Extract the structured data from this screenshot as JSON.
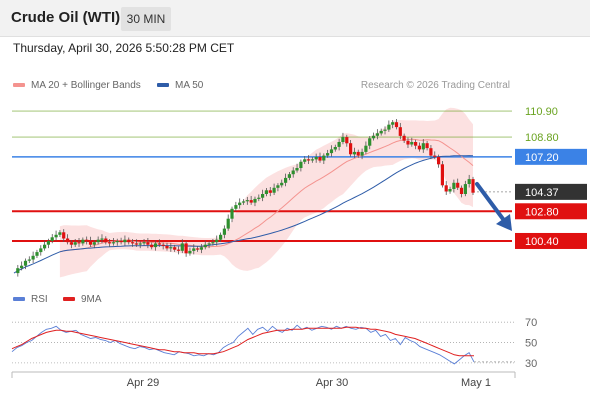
{
  "header": {
    "title": "Crude Oil (WTI)",
    "timeframe_label": "30 MIN"
  },
  "timestamp": "Thursday, April 30, 2026 5:50:28 PM CET",
  "legend": {
    "ma_bb": {
      "label": "MA 20 + Bollinger Bands",
      "color": "#f4938f"
    },
    "ma50": {
      "label": "MA 50",
      "color": "#2e5ca8"
    },
    "credit": "Research © 2026 Trading Central"
  },
  "rsi_legend": {
    "rsi": {
      "label": "RSI",
      "color": "#5a7fd6"
    },
    "ma9": {
      "label": "9MA",
      "color": "#e02020"
    }
  },
  "price_levels": [
    {
      "label": "110.90",
      "value": 110.9,
      "kind": "resistance",
      "color": "#6aa321"
    },
    {
      "label": "108.80",
      "value": 108.8,
      "kind": "resistance",
      "color": "#6aa321"
    },
    {
      "label": "107.20",
      "value": 107.2,
      "kind": "pivot",
      "color": "#3b82e6"
    },
    {
      "label": "104.37",
      "value": 104.37,
      "kind": "last-price",
      "color": "#333333"
    },
    {
      "label": "102.80",
      "value": 102.8,
      "kind": "support",
      "color": "#e01010"
    },
    {
      "label": "100.40",
      "value": 100.4,
      "kind": "support",
      "color": "#e01010"
    }
  ],
  "rsi_levels": [
    "70",
    "50",
    "30"
  ],
  "x_labels": [
    "Apr 29",
    "Apr 30",
    "May 1"
  ],
  "chart_data": {
    "type": "line",
    "price_range": [
      98.7,
      112.2
    ],
    "rsi_range": [
      25,
      80
    ],
    "close": [
      97.8,
      98.2,
      98.4,
      98.8,
      98.9,
      99.2,
      99.5,
      99.8,
      100.1,
      100.4,
      100.7,
      100.9,
      101.1,
      100.6,
      100.3,
      100.1,
      100.3,
      100.2,
      100.5,
      100.4,
      100.1,
      100.3,
      100.5,
      100.6,
      100.3,
      100.2,
      100.3,
      100.4,
      100.3,
      100.5,
      100.3,
      100.2,
      100.1,
      100.2,
      100.3,
      100.1,
      99.9,
      100.2,
      100.1,
      100.0,
      99.8,
      99.9,
      99.7,
      99.6,
      100.2,
      99.4,
      99.6,
      99.8,
      99.7,
      99.9,
      100.1,
      100.2,
      100.3,
      100.5,
      100.9,
      101.4,
      102.2,
      103.0,
      103.3,
      103.5,
      103.6,
      103.7,
      103.5,
      103.8,
      103.9,
      104.2,
      104.5,
      104.3,
      104.7,
      104.9,
      105.1,
      105.5,
      105.8,
      106.1,
      106.3,
      106.8,
      107.0,
      106.9,
      107.0,
      107.2,
      106.9,
      107.3,
      107.5,
      107.8,
      108.0,
      108.4,
      108.8,
      108.3,
      107.4,
      107.6,
      107.3,
      107.6,
      108.1,
      108.7,
      108.9,
      109.1,
      109.3,
      109.4,
      109.8,
      110.0,
      109.6,
      108.9,
      108.5,
      108.2,
      108.4,
      108.1,
      107.8,
      108.3,
      107.9,
      107.3,
      107.2,
      106.6,
      104.9,
      104.4,
      104.6,
      105.1,
      104.7,
      104.2,
      105.0,
      105.4,
      104.3
    ],
    "rsi": [
      41,
      45,
      47,
      50,
      52,
      56,
      60,
      63,
      64,
      66,
      62,
      60,
      61,
      62,
      58,
      56,
      54,
      55,
      53,
      52,
      50,
      52,
      49,
      47,
      45,
      44,
      46,
      45,
      43,
      44,
      42,
      40,
      39,
      38,
      41,
      40,
      39,
      37,
      38,
      37,
      39,
      38,
      40,
      45,
      48,
      50,
      56,
      60,
      64,
      58,
      63,
      65,
      61,
      66,
      62,
      60,
      64,
      62,
      67,
      63,
      65,
      62,
      64,
      66,
      65,
      63,
      66,
      64,
      66,
      64,
      63,
      65,
      64,
      60,
      62,
      56,
      58,
      52,
      54,
      48,
      55,
      52,
      50,
      46,
      44,
      42,
      40,
      38,
      35,
      32,
      29,
      33,
      37,
      40,
      31
    ],
    "rsi_ma": [
      44,
      46,
      48,
      51,
      54,
      56,
      58,
      60,
      61,
      62,
      62,
      61,
      61,
      60,
      59,
      58,
      57,
      56,
      55,
      54,
      53,
      52,
      51,
      50,
      49,
      48,
      47,
      46,
      45,
      44,
      43,
      43,
      42,
      41,
      41,
      40,
      40,
      40,
      39,
      39,
      39,
      39,
      40,
      41,
      43,
      45,
      47,
      50,
      53,
      55,
      57,
      59,
      60,
      61,
      62,
      62,
      62,
      63,
      63,
      63,
      64,
      64,
      64,
      64,
      64,
      64,
      64,
      64,
      65,
      65,
      65,
      64,
      64,
      63,
      63,
      62,
      61,
      60,
      58,
      57,
      56,
      55,
      54,
      52,
      50,
      48,
      46,
      44,
      42,
      40,
      38,
      37,
      37,
      37,
      37
    ]
  }
}
